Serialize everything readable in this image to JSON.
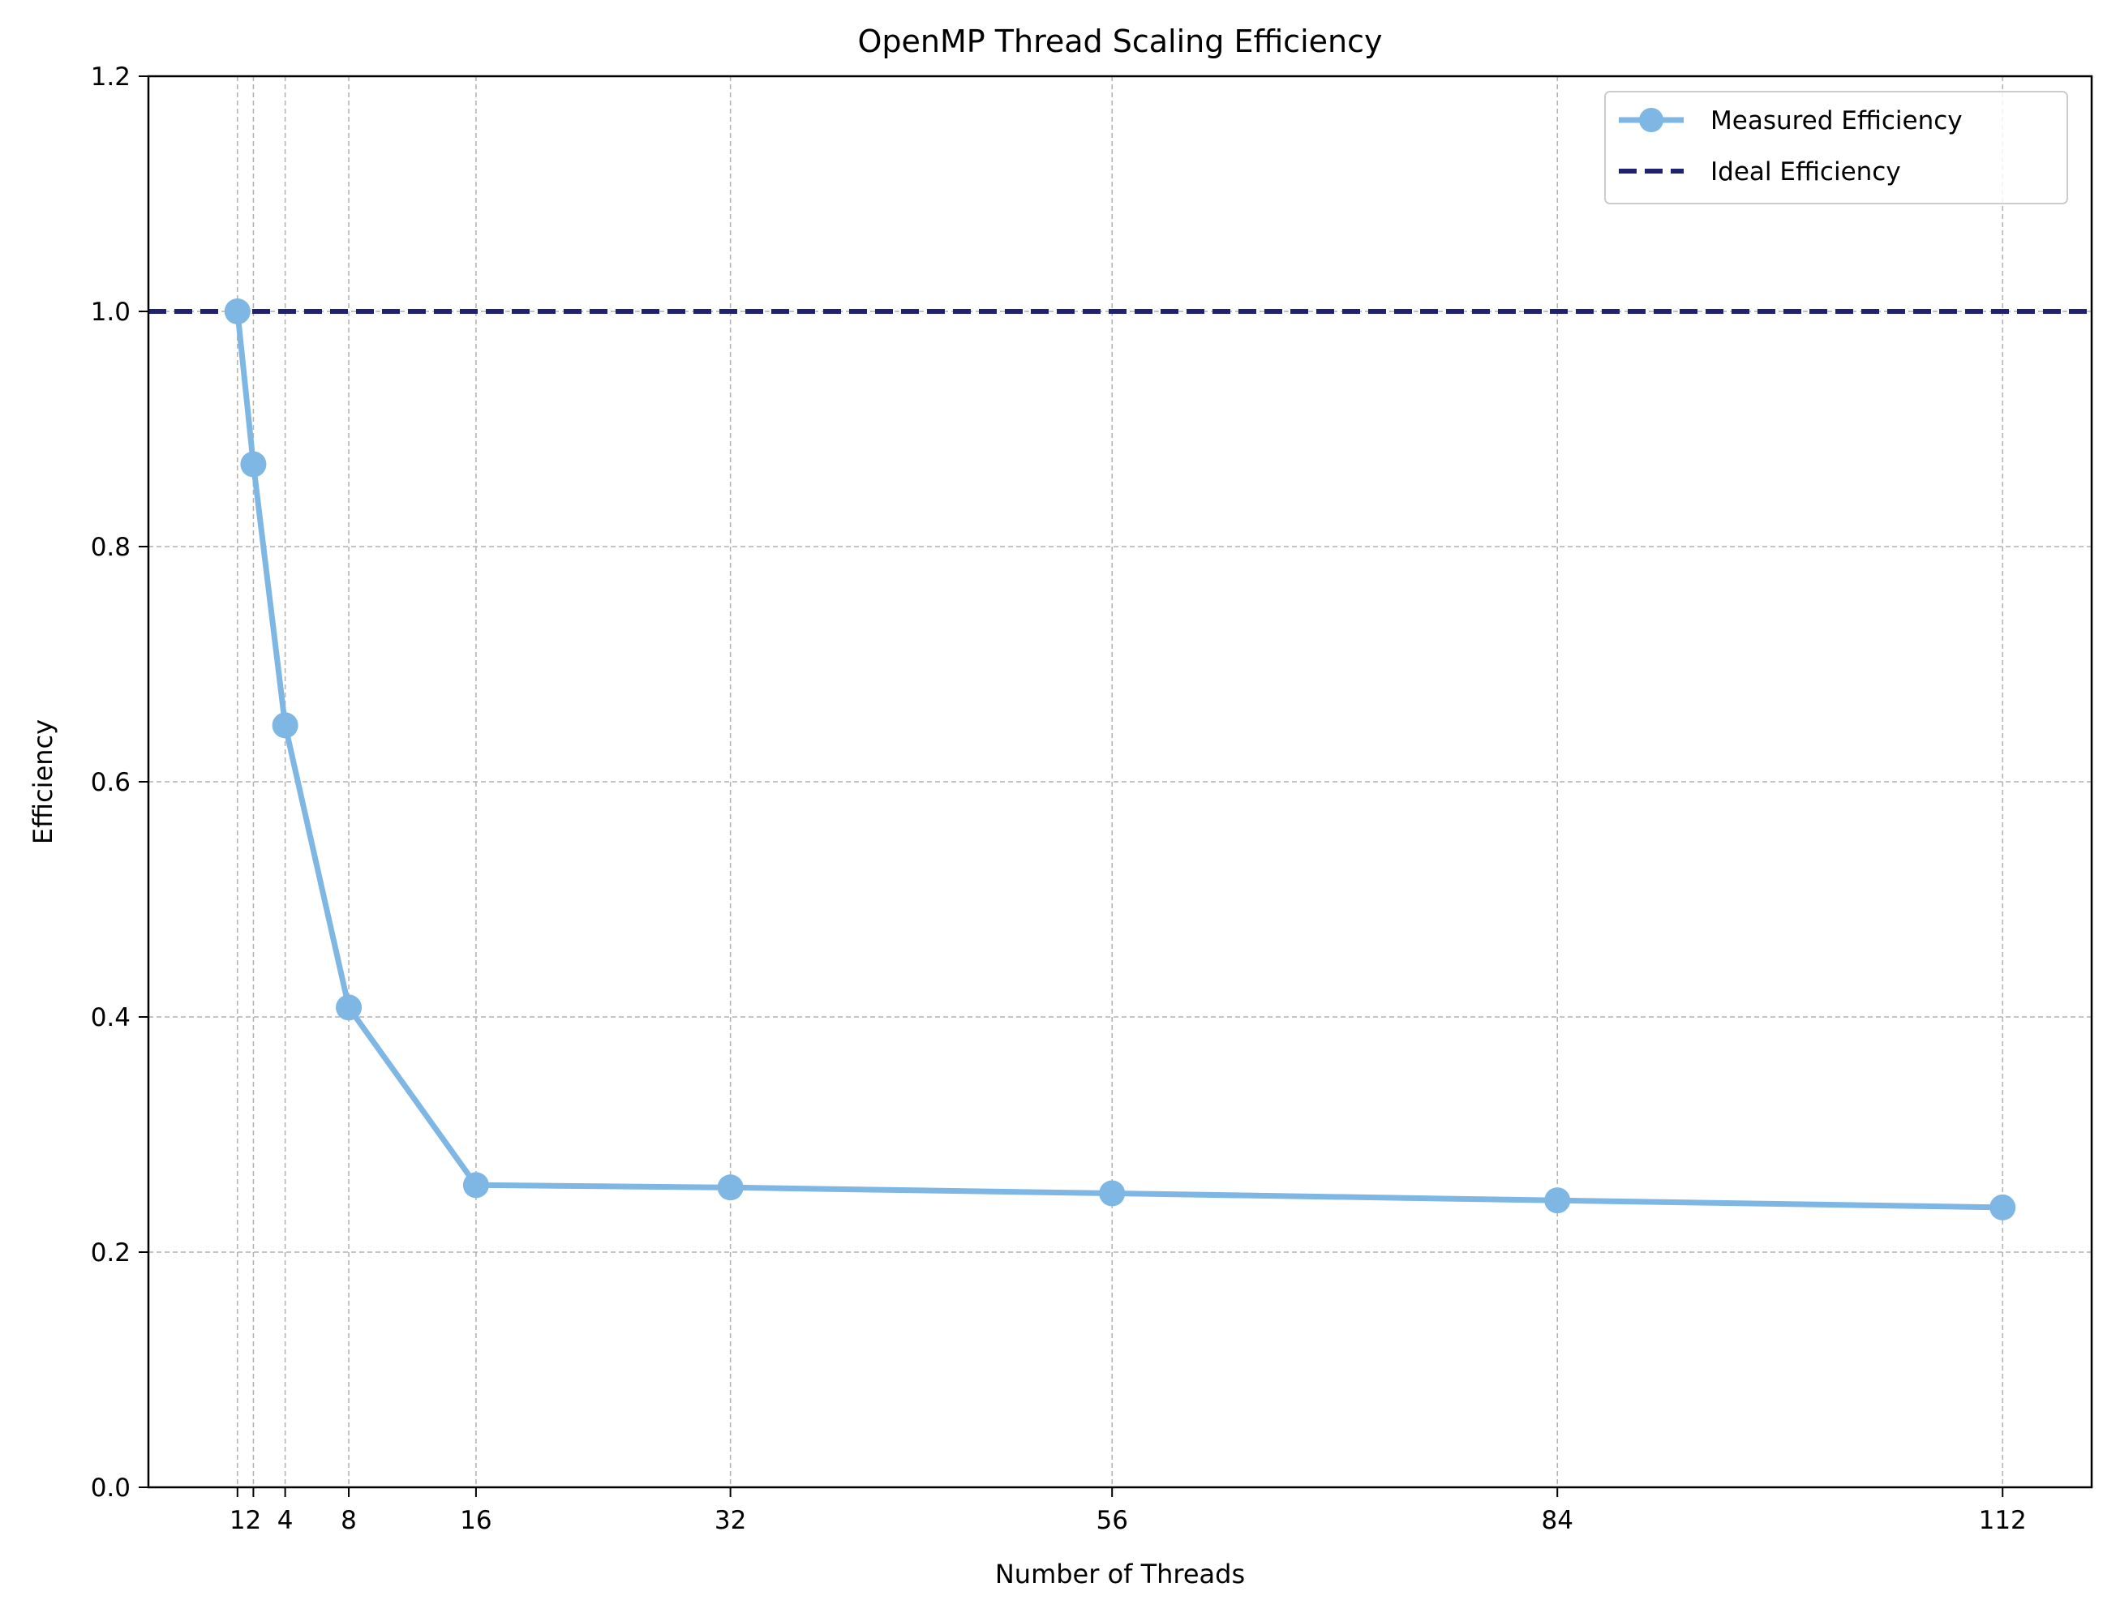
{
  "chart_data": {
    "type": "line",
    "title": "OpenMP Thread Scaling Efficiency",
    "xlabel": "Number of Threads",
    "ylabel": "Efficiency",
    "x": [
      1,
      2,
      4,
      8,
      16,
      32,
      56,
      84,
      112
    ],
    "xticks": [
      "1",
      "2",
      "4",
      "8",
      "16",
      "32",
      "56",
      "84",
      "112"
    ],
    "yticks": [
      "0.0",
      "0.2",
      "0.4",
      "0.6",
      "0.8",
      "1.0",
      "1.2"
    ],
    "xlim": [
      -4.6,
      117.6
    ],
    "ylim": [
      0,
      1.2
    ],
    "grid": true,
    "legend_position": "top-right",
    "series": [
      {
        "name": "Measured Efficiency",
        "style": "solid-with-markers",
        "color": "#7eb6e4",
        "values": [
          1.0,
          0.87,
          0.648,
          0.408,
          0.257,
          0.255,
          0.25,
          0.244,
          0.238
        ]
      },
      {
        "name": "Ideal Efficiency",
        "style": "dashed",
        "color": "#1f2270",
        "values": [
          1.0,
          1.0,
          1.0,
          1.0,
          1.0,
          1.0,
          1.0,
          1.0,
          1.0
        ]
      }
    ]
  }
}
